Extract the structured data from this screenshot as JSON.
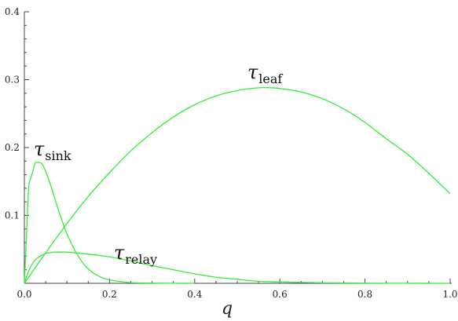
{
  "chart_data": {
    "type": "line",
    "xlabel": "q",
    "ylabel": "",
    "xlim": [
      0,
      1.0
    ],
    "ylim": [
      0,
      0.4
    ],
    "x_ticks": [
      "0.0",
      "0.2",
      "0.4",
      "0.6",
      "0.8",
      "1.0"
    ],
    "y_ticks": [
      "0.1",
      "0.2",
      "0.3",
      "0.4"
    ],
    "grid": false,
    "line_color": "#33ee33",
    "series": [
      {
        "name": "τleaf",
        "label_main": "τ",
        "label_sub": "leaf",
        "x": [
          0.0,
          0.05,
          0.1,
          0.15,
          0.2,
          0.25,
          0.3,
          0.35,
          0.4,
          0.45,
          0.5,
          0.55,
          0.58,
          0.6,
          0.65,
          0.7,
          0.75,
          0.8,
          0.85,
          0.9,
          0.95,
          1.0
        ],
        "y": [
          0.0,
          0.045,
          0.088,
          0.128,
          0.163,
          0.195,
          0.222,
          0.245,
          0.263,
          0.276,
          0.284,
          0.288,
          0.288,
          0.287,
          0.282,
          0.272,
          0.257,
          0.237,
          0.213,
          0.19,
          0.162,
          0.132
        ]
      },
      {
        "name": "τsink",
        "label_main": "τ",
        "label_sub": "sink",
        "x": [
          0.0,
          0.005,
          0.01,
          0.015,
          0.02,
          0.025,
          0.03,
          0.035,
          0.04,
          0.045,
          0.05,
          0.06,
          0.07,
          0.08,
          0.09,
          0.1,
          0.12,
          0.14,
          0.16,
          0.18,
          0.2,
          0.22,
          0.25,
          0.28,
          0.32,
          0.36,
          0.4
        ],
        "y": [
          0.0,
          0.07,
          0.14,
          0.155,
          0.165,
          0.177,
          0.178,
          0.178,
          0.177,
          0.172,
          0.165,
          0.148,
          0.128,
          0.108,
          0.09,
          0.073,
          0.047,
          0.028,
          0.016,
          0.009,
          0.005,
          0.003,
          0.001,
          0.0005,
          0.0002,
          0.0001,
          0.0
        ]
      },
      {
        "name": "τrelay",
        "label_main": "τ",
        "label_sub": "relay",
        "x": [
          0.0,
          0.01,
          0.02,
          0.03,
          0.04,
          0.05,
          0.06,
          0.07,
          0.08,
          0.09,
          0.1,
          0.15,
          0.2,
          0.25,
          0.3,
          0.35,
          0.4,
          0.45,
          0.5,
          0.55,
          0.6,
          0.7,
          0.8,
          0.9,
          1.0
        ],
        "y": [
          0.0,
          0.018,
          0.03,
          0.037,
          0.041,
          0.044,
          0.045,
          0.046,
          0.046,
          0.046,
          0.046,
          0.043,
          0.039,
          0.033,
          0.026,
          0.02,
          0.014,
          0.009,
          0.006,
          0.003,
          0.002,
          0.0008,
          0.0003,
          0.0001,
          0.0
        ]
      }
    ]
  }
}
